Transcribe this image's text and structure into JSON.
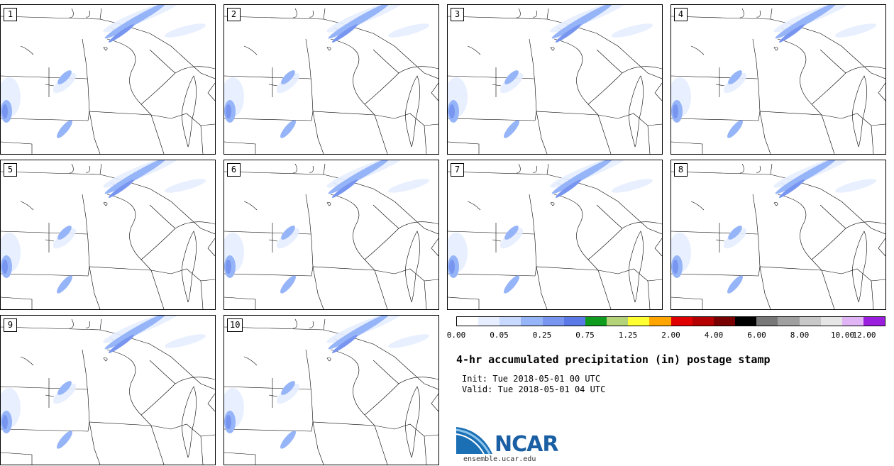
{
  "panels": [
    {
      "label": "1"
    },
    {
      "label": "2"
    },
    {
      "label": "3"
    },
    {
      "label": "4"
    },
    {
      "label": "5"
    },
    {
      "label": "6"
    },
    {
      "label": "7"
    },
    {
      "label": "8"
    },
    {
      "label": "9"
    },
    {
      "label": "10"
    }
  ],
  "legend": {
    "colors": [
      "#ffffff",
      "#e6eeff",
      "#c8d9ff",
      "#96b4f8",
      "#7896f0",
      "#5a78e6",
      "#0f9b1e",
      "#b4d278",
      "#ffff32",
      "#ffa500",
      "#e10000",
      "#b40000",
      "#780000",
      "#000000",
      "#787878",
      "#a0a0a0",
      "#c8c8c8",
      "#e6e6e6",
      "#e1b4f5",
      "#9b1ede"
    ],
    "ticks": [
      "0.00",
      "0.05",
      "0.25",
      "0.75",
      "1.25",
      "2.00",
      "4.00",
      "6.00",
      "8.00",
      "10.00",
      "12.00"
    ]
  },
  "title": "4-hr accumulated precipitation (in) postage stamp",
  "init": "Init: Tue 2018-05-01 00 UTC",
  "valid": "Valid: Tue 2018-05-01 04 UTC",
  "logo": {
    "text": "NCAR",
    "url": "ensemble.ucar.edu"
  }
}
